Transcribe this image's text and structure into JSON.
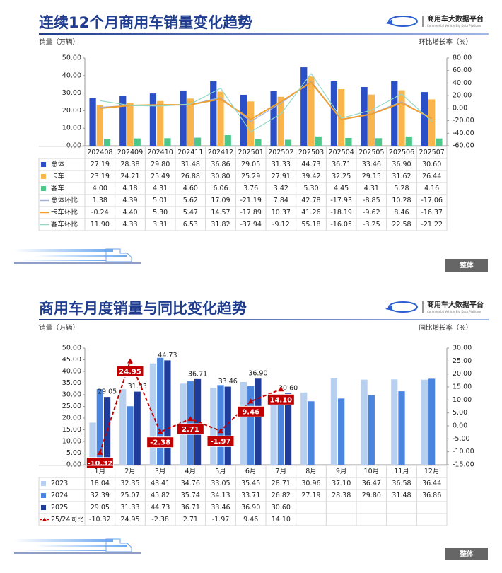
{
  "brand": "商用车大数据平台",
  "brand_sub": "Commercial Vehicle Big Data Platform",
  "button_label": "整体",
  "chart_data": [
    {
      "type": "bar",
      "title": "连续12个月商用车销量变化趋势",
      "y_label": "销量（万辆）",
      "y2_label": "环比增长率（%）",
      "categories": [
        "202408",
        "202409",
        "202410",
        "202411",
        "202412",
        "202501",
        "202502",
        "202503",
        "202504",
        "202505",
        "202506",
        "202507"
      ],
      "ylim": [
        0,
        50
      ],
      "yticks": [
        {
          "value": 0,
          "label": "0.00"
        },
        {
          "value": 10,
          "label": "10.00"
        },
        {
          "value": 20,
          "label": "20.00"
        },
        {
          "value": 30,
          "label": "30.00"
        },
        {
          "value": 40,
          "label": "40.00"
        },
        {
          "value": 50,
          "label": "50.00"
        }
      ],
      "y2lim": [
        -60,
        80
      ],
      "y2ticks": [
        {
          "value": -60,
          "label": "-60.00"
        },
        {
          "value": -40,
          "label": "-40.00"
        },
        {
          "value": -20,
          "label": "-20.00"
        },
        {
          "value": 0,
          "label": "0.00"
        },
        {
          "value": 20,
          "label": "20.00"
        },
        {
          "value": 40,
          "label": "40.00"
        },
        {
          "value": 60,
          "label": "60.00"
        },
        {
          "value": 80,
          "label": "80.00"
        }
      ],
      "series": [
        {
          "name": "总体",
          "type": "bar",
          "color": "#2b4fc7",
          "values": [
            27.19,
            28.38,
            29.8,
            31.48,
            36.86,
            29.05,
            31.33,
            44.73,
            36.71,
            33.46,
            36.9,
            30.6
          ],
          "value_labels": [
            "27.19",
            "28.38",
            "29.80",
            "31.48",
            "36.86",
            "29.05",
            "31.33",
            "44.73",
            "36.71",
            "33.46",
            "36.90",
            "30.60"
          ]
        },
        {
          "name": "卡车",
          "type": "bar",
          "color": "#f9b54c",
          "values": [
            23.19,
            24.21,
            25.49,
            26.88,
            30.8,
            25.29,
            27.91,
            39.42,
            32.25,
            29.15,
            31.62,
            26.44
          ],
          "value_labels": [
            "23.19",
            "24.21",
            "25.49",
            "26.88",
            "30.80",
            "25.29",
            "27.91",
            "39.42",
            "32.25",
            "29.15",
            "31.62",
            "26.44"
          ]
        },
        {
          "name": "客车",
          "type": "bar",
          "color": "#4dc88a",
          "values": [
            4,
            4.18,
            4.31,
            4.6,
            6.06,
            3.76,
            3.42,
            5.3,
            4.45,
            4.31,
            5.28,
            4.16
          ],
          "value_labels": [
            "4.00",
            "4.18",
            "4.31",
            "4.60",
            "6.06",
            "3.76",
            "3.42",
            "5.30",
            "4.45",
            "4.31",
            "5.28",
            "4.16"
          ]
        },
        {
          "name": "总体环比",
          "type": "line",
          "axis": "y2",
          "color": "#9fb3d9",
          "values": [
            1.38,
            4.39,
            5.01,
            5.62,
            17.09,
            -21.19,
            7.84,
            42.78,
            -17.93,
            -8.85,
            10.28,
            -17.06
          ],
          "value_labels": [
            "1.38",
            "4.39",
            "5.01",
            "5.62",
            "17.09",
            "-21.19",
            "7.84",
            "42.78",
            "-17.93",
            "-8.85",
            "10.28",
            "-17.06"
          ]
        },
        {
          "name": "卡车环比",
          "type": "line",
          "axis": "y2",
          "color": "#f0a030",
          "values": [
            -0.24,
            4.4,
            5.3,
            5.47,
            14.57,
            -17.89,
            10.37,
            41.26,
            -18.19,
            -9.62,
            8.46,
            -16.37
          ],
          "value_labels": [
            "-0.24",
            "4.40",
            "5.30",
            "5.47",
            "14.57",
            "-17.89",
            "10.37",
            "41.26",
            "-18.19",
            "-9.62",
            "8.46",
            "-16.37"
          ]
        },
        {
          "name": "客车环比",
          "type": "line",
          "axis": "y2",
          "color": "#8fd8c8",
          "values": [
            11.9,
            4.33,
            3.31,
            6.53,
            31.82,
            -37.94,
            -9.12,
            55.18,
            -16.05,
            -3.25,
            22.58,
            -21.22
          ],
          "value_labels": [
            "11.90",
            "4.33",
            "3.31",
            "6.53",
            "31.82",
            "-37.94",
            "-9.12",
            "55.18",
            "-16.05",
            "-3.25",
            "22.58",
            "-21.22"
          ]
        }
      ]
    },
    {
      "type": "bar",
      "title": "商用车月度销量与同比变化趋势",
      "y_label": "销量（万辆）",
      "y2_label": "同比增长率（%）",
      "categories": [
        "1月",
        "2月",
        "3月",
        "4月",
        "5月",
        "6月",
        "7月",
        "8月",
        "9月",
        "10月",
        "11月",
        "12月"
      ],
      "ylim": [
        0,
        50
      ],
      "yticks": [
        {
          "value": 0,
          "label": "0.00"
        },
        {
          "value": 5,
          "label": "5.00"
        },
        {
          "value": 10,
          "label": "10.00"
        },
        {
          "value": 15,
          "label": "15.00"
        },
        {
          "value": 20,
          "label": "20.00"
        },
        {
          "value": 25,
          "label": "25.00"
        },
        {
          "value": 30,
          "label": "30.00"
        },
        {
          "value": 35,
          "label": "35.00"
        },
        {
          "value": 40,
          "label": "40.00"
        },
        {
          "value": 45,
          "label": "45.00"
        },
        {
          "value": 50,
          "label": "50.00"
        }
      ],
      "y2lim": [
        -15,
        30
      ],
      "y2ticks": [
        {
          "value": -15,
          "label": "-15.00"
        },
        {
          "value": -10,
          "label": "-10.00"
        },
        {
          "value": -5,
          "label": "-5.00"
        },
        {
          "value": 0,
          "label": "0.00"
        },
        {
          "value": 5,
          "label": "5.00"
        },
        {
          "value": 10,
          "label": "10.00"
        },
        {
          "value": 15,
          "label": "15.00"
        },
        {
          "value": 20,
          "label": "20.00"
        },
        {
          "value": 25,
          "label": "25.00"
        },
        {
          "value": 30,
          "label": "30.00"
        }
      ],
      "series": [
        {
          "name": "2023",
          "type": "bar",
          "color": "#b8d0f0",
          "values": [
            18.04,
            32.35,
            43.41,
            34.76,
            33.05,
            35.45,
            28.71,
            30.96,
            37.1,
            36.47,
            36.58,
            36.44
          ],
          "value_labels": [
            "18.04",
            "32.35",
            "43.41",
            "34.76",
            "33.05",
            "35.45",
            "28.71",
            "30.96",
            "37.10",
            "36.47",
            "36.58",
            "36.44"
          ]
        },
        {
          "name": "2024",
          "type": "bar",
          "color": "#4a86e0",
          "values": [
            32.39,
            25.07,
            45.82,
            35.74,
            34.13,
            33.71,
            26.82,
            27.19,
            28.38,
            29.8,
            31.48,
            36.86
          ],
          "value_labels": [
            "32.39",
            "25.07",
            "45.82",
            "35.74",
            "34.13",
            "33.71",
            "26.82",
            "27.19",
            "28.38",
            "29.80",
            "31.48",
            "36.86"
          ]
        },
        {
          "name": "2025",
          "type": "bar",
          "color": "#1f3c9a",
          "show_labels": true,
          "values": [
            29.05,
            31.33,
            44.73,
            36.71,
            33.46,
            36.9,
            30.6,
            null,
            null,
            null,
            null,
            null
          ],
          "value_labels": [
            "29.05",
            "31.33",
            "44.73",
            "36.71",
            "33.46",
            "36.90",
            "30.60",
            null,
            null,
            null,
            null,
            null
          ]
        },
        {
          "name": "25/24同比",
          "type": "line",
          "axis": "y2",
          "color": "#c00000",
          "dashed": true,
          "marker": "triangle",
          "label_boxes": true,
          "values": [
            -10.32,
            24.95,
            -2.38,
            2.71,
            -1.97,
            9.46,
            14.1,
            null,
            null,
            null,
            null,
            null
          ],
          "value_labels": [
            "-10.32",
            "24.95",
            "-2.38",
            "2.71",
            "-1.97",
            "9.46",
            "14.10",
            null,
            null,
            null,
            null,
            null
          ]
        }
      ]
    }
  ]
}
